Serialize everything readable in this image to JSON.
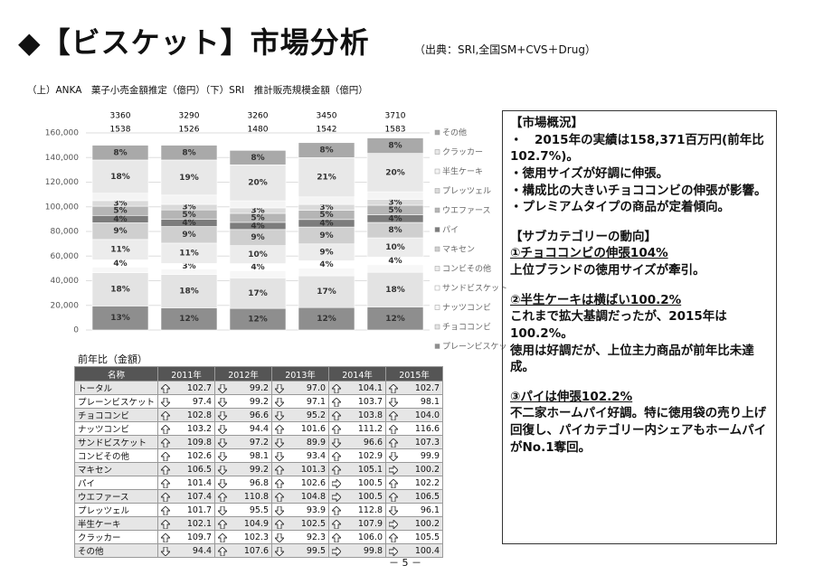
{
  "title": "◆【ビスケット】市場分析",
  "source": "（出典：SRI,全国SM+CVS＋Drug）",
  "subtitle": "（上）ANKA　菓子小売金額推定（億円）（下）SRI　推計販売規模金額（億円）",
  "chart_data": {
    "type": "stacked_bar",
    "categories": [
      null,
      null,
      null,
      null,
      null
    ],
    "top_labels": [
      [
        3360,
        1538
      ],
      [
        3290,
        1526
      ],
      [
        3260,
        1480
      ],
      [
        3450,
        1542
      ],
      [
        3710,
        1583
      ]
    ],
    "ylim": [
      0,
      160000
    ],
    "yticks": [
      0,
      {
        "value": 20000,
        "label": "20,000"
      },
      {
        "value": 40000,
        "label": "40,000"
      },
      {
        "value": 60000,
        "label": "60,000"
      },
      {
        "value": 80000,
        "label": "80,000"
      },
      {
        "value": 100000,
        "label": "100,000"
      },
      {
        "value": 120000,
        "label": "120,000"
      },
      {
        "value": 140000,
        "label": "140,000"
      },
      {
        "value": 160000,
        "label": "160,000"
      }
    ],
    "grid": true,
    "legend": "right",
    "series": [
      {
        "name": "プレーンビスケット",
        "color": "#8e8e8e",
        "values": [
          19500,
          18000,
          17500,
          18200,
          18700
        ],
        "share_labels": [
          "13%",
          "12%",
          "12%",
          "12%",
          "12%"
        ]
      },
      {
        "name": "チョココンビ",
        "color": "#e3e3e3",
        "values": [
          27000,
          27000,
          24800,
          25800,
          28100
        ],
        "share_labels": [
          "18%",
          "18%",
          "17%",
          "17%",
          "18%"
        ]
      },
      {
        "name": "ナッツコンビ",
        "color": "#f7f7f7",
        "values": [
          4500,
          4500,
          5800,
          6100,
          6200
        ],
        "share_labels": [
          null,
          null,
          null,
          null,
          null
        ]
      },
      {
        "name": "サンドビスケット",
        "color": "#ffffff",
        "values": [
          6000,
          4500,
          5800,
          6100,
          6200
        ],
        "share_labels": [
          "4%",
          "3%",
          "4%",
          "4%",
          "4%"
        ]
      },
      {
        "name": "コンビその他",
        "color": "#ececec",
        "values": [
          16500,
          16500,
          14600,
          13700,
          15600
        ],
        "share_labels": [
          "11%",
          "11%",
          "10%",
          "9%",
          "10%"
        ]
      },
      {
        "name": "マキセン",
        "color": "#cfcfcf",
        "values": [
          13500,
          13500,
          13100,
          13700,
          12500
        ],
        "share_labels": [
          "9%",
          "9%",
          "9%",
          "9%",
          "8%"
        ]
      },
      {
        "name": "パイ",
        "color": "#7c7c7c",
        "values": [
          6000,
          6000,
          5800,
          6100,
          6200
        ],
        "share_labels": [
          "4%",
          "4%",
          "4%",
          "4%",
          "4%"
        ]
      },
      {
        "name": "ウエファース",
        "color": "#b5b5b5",
        "values": [
          7500,
          7500,
          7300,
          7600,
          7800
        ],
        "share_labels": [
          "5%",
          "5%",
          "5%",
          "5%",
          "5%"
        ]
      },
      {
        "name": "プレッツェル",
        "color": "#dadada",
        "values": [
          4500,
          4500,
          4400,
          4600,
          4700
        ],
        "share_labels": [
          "3%",
          "3%",
          "3%",
          "3%",
          "3%"
        ]
      },
      {
        "name": "半生ケーキ",
        "color": "#f4f4f4",
        "values": [
          6000,
          7500,
          5800,
          6100,
          6200
        ],
        "share_labels": [
          null,
          null,
          null,
          null,
          null
        ]
      },
      {
        "name": "クラッカー",
        "color": "#e8e8e8",
        "values": [
          27000,
          28500,
          29200,
          31900,
          31200
        ],
        "share_labels": [
          "18%",
          "19%",
          "20%",
          "21%",
          "20%"
        ]
      },
      {
        "name": "その他",
        "color": "#a9a9a9",
        "values": [
          12000,
          12000,
          11700,
          12200,
          12500
        ],
        "share_labels": [
          "8%",
          "8%",
          "8%",
          "8%",
          "8%"
        ]
      }
    ]
  },
  "table": {
    "title": "前年比（金額）",
    "header": [
      "名称",
      "2011年",
      "2012年",
      "2013年",
      "2014年",
      "2015年"
    ],
    "rows": [
      {
        "name": "トータル",
        "values": [
          "102.7",
          "99.2",
          "97.0",
          "104.1",
          "102.7"
        ],
        "arrows": [
          "up",
          "down",
          "down",
          "up",
          "up"
        ]
      },
      {
        "name": "プレーンビスケット",
        "values": [
          "97.4",
          "99.2",
          "97.1",
          "103.7",
          "98.1"
        ],
        "arrows": [
          "down",
          "down",
          "down",
          "up",
          "down"
        ]
      },
      {
        "name": "チョココンビ",
        "values": [
          "102.8",
          "96.6",
          "95.2",
          "103.8",
          "104.0"
        ],
        "arrows": [
          "up",
          "down",
          "down",
          "up",
          "up"
        ]
      },
      {
        "name": "ナッツコンビ",
        "values": [
          "103.2",
          "94.4",
          "101.6",
          "111.2",
          "116.6"
        ],
        "arrows": [
          "up",
          "down",
          "up",
          "up",
          "up"
        ]
      },
      {
        "name": "サンドビスケット",
        "values": [
          "109.8",
          "97.2",
          "89.9",
          "96.6",
          "107.3"
        ],
        "arrows": [
          "up",
          "down",
          "down",
          "down",
          "up"
        ]
      },
      {
        "name": "コンビその他",
        "values": [
          "102.6",
          "98.1",
          "93.4",
          "102.9",
          "99.9"
        ],
        "arrows": [
          "up",
          "down",
          "down",
          "up",
          "down"
        ]
      },
      {
        "name": "マキセン",
        "values": [
          "106.5",
          "99.2",
          "101.3",
          "105.1",
          "100.2"
        ],
        "arrows": [
          "up",
          "down",
          "up",
          "up",
          "flat"
        ]
      },
      {
        "name": "パイ",
        "values": [
          "101.4",
          "96.8",
          "102.6",
          "100.5",
          "102.2"
        ],
        "arrows": [
          "up",
          "down",
          "up",
          "flat",
          "up"
        ]
      },
      {
        "name": "ウエファース",
        "values": [
          "107.4",
          "110.8",
          "104.8",
          "100.5",
          "106.5"
        ],
        "arrows": [
          "up",
          "up",
          "up",
          "flat",
          "up"
        ]
      },
      {
        "name": "プレッツェル",
        "values": [
          "101.7",
          "95.5",
          "93.9",
          "112.8",
          "96.1"
        ],
        "arrows": [
          "up",
          "down",
          "down",
          "up",
          "down"
        ]
      },
      {
        "name": "半生ケーキ",
        "values": [
          "102.1",
          "104.9",
          "102.5",
          "107.9",
          "100.2"
        ],
        "arrows": [
          "up",
          "up",
          "up",
          "up",
          "flat"
        ]
      },
      {
        "name": "クラッカー",
        "values": [
          "109.7",
          "102.3",
          "92.3",
          "106.0",
          "105.5"
        ],
        "arrows": [
          "up",
          "up",
          "down",
          "up",
          "up"
        ]
      },
      {
        "name": "その他",
        "values": [
          "94.4",
          "107.6",
          "99.5",
          "99.8",
          "100.4"
        ],
        "arrows": [
          "down",
          "up",
          "down",
          "flat",
          "flat"
        ]
      }
    ]
  },
  "summary": {
    "heading": "【市場概況】",
    "points": [
      "・　2015年の実績は158,371百万円(前年比102.7%)。",
      "・徳用サイズが好調に伸張。",
      "・構成比の大きいチョココンビの伸張が影響。",
      "・プレミアムタイプの商品が定着傾向。"
    ],
    "sub_heading": "【サブカテゴリーの動向】",
    "topics": [
      {
        "title": "①チョココンビの伸張104%",
        "lines": [
          "上位ブランドの徳用サイズが牽引。"
        ]
      },
      {
        "title": "②半生ケーキは横ばい100.2%",
        "lines": [
          "これまで拡大基調だったが、2015年は100.2%。",
          "徳用は好調だが、上位主力商品が前年比未達成。"
        ]
      },
      {
        "title": "③パイは伸張102.2%",
        "lines": [
          "不二家ホームパイ好調。特に徳用袋の売り上げ回復し、パイカテゴリー内シェアもホームパイがNo.1奪回。"
        ]
      }
    ]
  },
  "page_number": "－ 5 －"
}
